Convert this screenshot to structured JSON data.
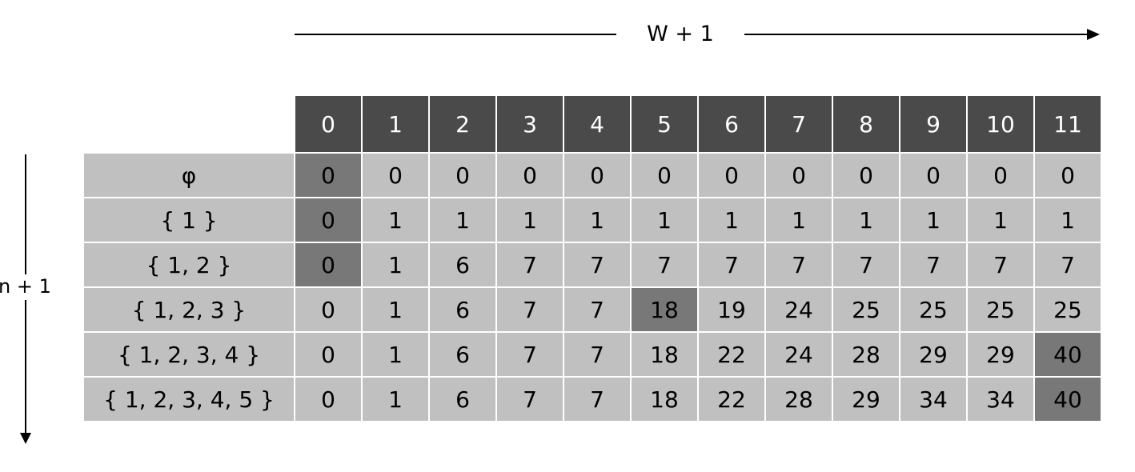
{
  "top_label": "W + 1",
  "side_label": "n + 1",
  "columns": [
    "0",
    "1",
    "2",
    "3",
    "4",
    "5",
    "6",
    "7",
    "8",
    "9",
    "10",
    "11"
  ],
  "rows": [
    {
      "label": "φ",
      "values": [
        "0",
        "0",
        "0",
        "0",
        "0",
        "0",
        "0",
        "0",
        "0",
        "0",
        "0",
        "0"
      ]
    },
    {
      "label": "{ 1 }",
      "values": [
        "0",
        "1",
        "1",
        "1",
        "1",
        "1",
        "1",
        "1",
        "1",
        "1",
        "1",
        "1"
      ]
    },
    {
      "label": "{ 1, 2 }",
      "values": [
        "0",
        "1",
        "6",
        "7",
        "7",
        "7",
        "7",
        "7",
        "7",
        "7",
        "7",
        "7"
      ]
    },
    {
      "label": "{ 1, 2, 3 }",
      "values": [
        "0",
        "1",
        "6",
        "7",
        "7",
        "18",
        "19",
        "24",
        "25",
        "25",
        "25",
        "25"
      ]
    },
    {
      "label": "{ 1, 2, 3, 4 }",
      "values": [
        "0",
        "1",
        "6",
        "7",
        "7",
        "18",
        "22",
        "24",
        "28",
        "29",
        "29",
        "40"
      ]
    },
    {
      "label": "{ 1, 2, 3, 4, 5 }",
      "values": [
        "0",
        "1",
        "6",
        "7",
        "7",
        "18",
        "22",
        "28",
        "29",
        "34",
        "34",
        "40"
      ]
    }
  ],
  "highlighted_cells": [
    [
      0,
      0
    ],
    [
      1,
      0
    ],
    [
      2,
      0
    ],
    [
      3,
      5
    ],
    [
      4,
      11
    ],
    [
      5,
      11
    ]
  ],
  "colors": {
    "header_bg": "#4a4a4a",
    "cell_bg": "#c0c0c0",
    "highlight_bg": "#787878",
    "grid_line": "#ffffff"
  }
}
